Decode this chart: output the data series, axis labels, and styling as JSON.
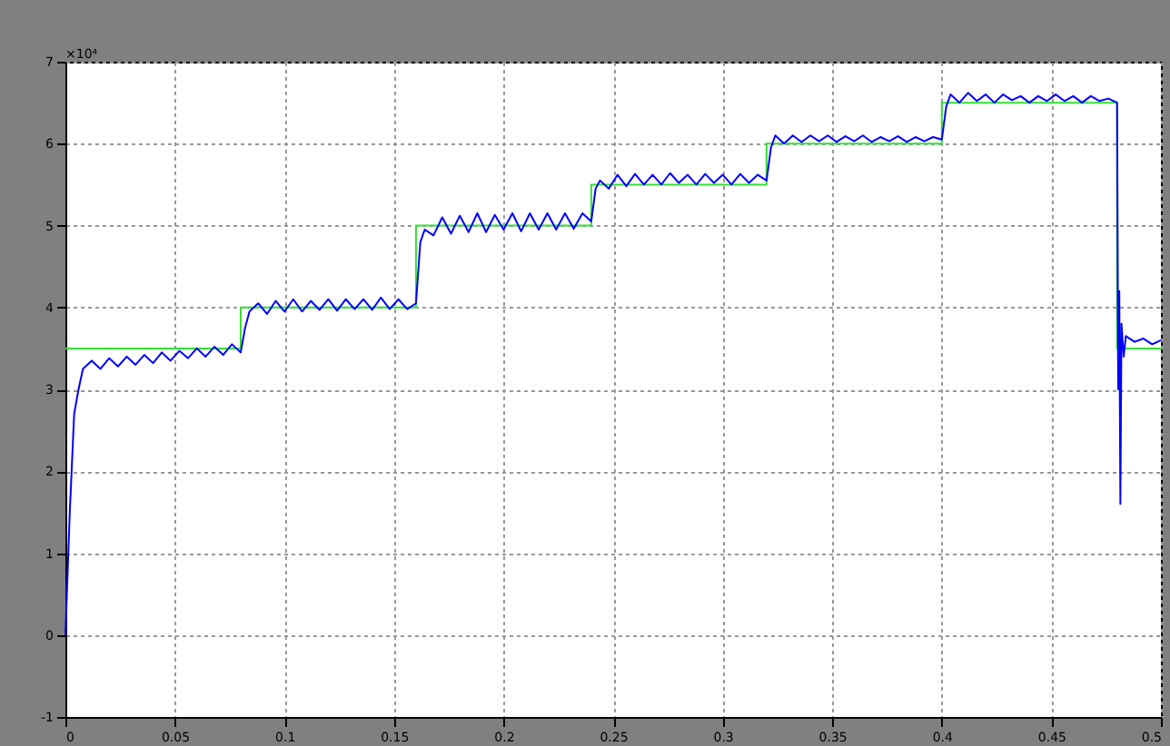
{
  "chart_data": {
    "type": "line",
    "annotations": [
      "×10⁴"
    ],
    "xlim": [
      0,
      0.5
    ],
    "xticks": [
      0,
      0.05,
      0.1,
      0.15,
      0.2,
      0.25,
      0.3,
      0.35,
      0.4,
      0.45,
      0.5
    ],
    "ylim": [
      -1,
      7
    ],
    "yticks": [
      -1,
      0,
      1,
      2,
      3,
      4,
      5,
      6,
      7
    ],
    "grid": true,
    "marker": "none",
    "line_style": "solid",
    "series": [
      {
        "type": "step",
        "color": "#33e033",
        "x": [
          0,
          0.08,
          0.16,
          0.24,
          0.32,
          0.4,
          0.48,
          0.5
        ],
        "values": [
          3.5,
          4,
          5,
          5.5,
          6,
          6.5,
          3.5,
          3.5
        ]
      },
      {
        "type": "line",
        "color": "#0000ff",
        "x": [
          0,
          0.002,
          0.004,
          0.006,
          0.008,
          0.012,
          0.016,
          0.02,
          0.024,
          0.028,
          0.032,
          0.036,
          0.04,
          0.044,
          0.048,
          0.052,
          0.056,
          0.06,
          0.064,
          0.068,
          0.072,
          0.076,
          0.08,
          0.082,
          0.084,
          0.088,
          0.092,
          0.096,
          0.1,
          0.104,
          0.108,
          0.112,
          0.116,
          0.12,
          0.124,
          0.128,
          0.132,
          0.136,
          0.14,
          0.144,
          0.148,
          0.152,
          0.156,
          0.16,
          0.162,
          0.164,
          0.168,
          0.172,
          0.176,
          0.18,
          0.184,
          0.188,
          0.192,
          0.196,
          0.2,
          0.204,
          0.208,
          0.212,
          0.216,
          0.22,
          0.224,
          0.228,
          0.232,
          0.236,
          0.24,
          0.242,
          0.244,
          0.248,
          0.252,
          0.256,
          0.26,
          0.264,
          0.268,
          0.272,
          0.276,
          0.28,
          0.284,
          0.288,
          0.292,
          0.296,
          0.3,
          0.304,
          0.308,
          0.312,
          0.316,
          0.32,
          0.322,
          0.324,
          0.328,
          0.332,
          0.336,
          0.34,
          0.344,
          0.348,
          0.352,
          0.356,
          0.36,
          0.364,
          0.368,
          0.372,
          0.376,
          0.38,
          0.384,
          0.388,
          0.392,
          0.396,
          0.4,
          0.402,
          0.404,
          0.408,
          0.412,
          0.416,
          0.42,
          0.424,
          0.428,
          0.432,
          0.436,
          0.44,
          0.444,
          0.448,
          0.452,
          0.456,
          0.46,
          0.464,
          0.468,
          0.472,
          0.476,
          0.48,
          0.4805,
          0.481,
          0.4815,
          0.482,
          0.483,
          0.484,
          0.488,
          0.492,
          0.496,
          0.5
        ],
        "values": [
          0,
          1.5,
          2.7,
          3.0,
          3.25,
          3.35,
          3.25,
          3.38,
          3.28,
          3.4,
          3.3,
          3.42,
          3.32,
          3.45,
          3.35,
          3.47,
          3.38,
          3.5,
          3.4,
          3.52,
          3.42,
          3.55,
          3.45,
          3.75,
          3.95,
          4.05,
          3.92,
          4.08,
          3.95,
          4.1,
          3.95,
          4.08,
          3.97,
          4.1,
          3.96,
          4.1,
          3.98,
          4.1,
          3.97,
          4.12,
          3.98,
          4.1,
          3.98,
          4.05,
          4.8,
          4.95,
          4.88,
          5.1,
          4.9,
          5.12,
          4.92,
          5.15,
          4.92,
          5.13,
          4.95,
          5.15,
          4.93,
          5.15,
          4.95,
          5.15,
          4.95,
          5.15,
          4.96,
          5.15,
          5.05,
          5.45,
          5.55,
          5.45,
          5.62,
          5.48,
          5.63,
          5.5,
          5.62,
          5.5,
          5.64,
          5.52,
          5.62,
          5.5,
          5.63,
          5.52,
          5.62,
          5.5,
          5.63,
          5.52,
          5.62,
          5.55,
          5.95,
          6.1,
          6.0,
          6.1,
          6.02,
          6.1,
          6.03,
          6.1,
          6.02,
          6.09,
          6.03,
          6.1,
          6.02,
          6.08,
          6.03,
          6.09,
          6.02,
          6.08,
          6.03,
          6.08,
          6.05,
          6.45,
          6.6,
          6.5,
          6.62,
          6.52,
          6.6,
          6.5,
          6.6,
          6.53,
          6.58,
          6.5,
          6.58,
          6.52,
          6.6,
          6.52,
          6.58,
          6.5,
          6.58,
          6.52,
          6.55,
          6.5,
          3.0,
          4.2,
          1.6,
          3.8,
          3.4,
          3.65,
          3.58,
          3.62,
          3.55,
          3.6
        ]
      }
    ]
  }
}
